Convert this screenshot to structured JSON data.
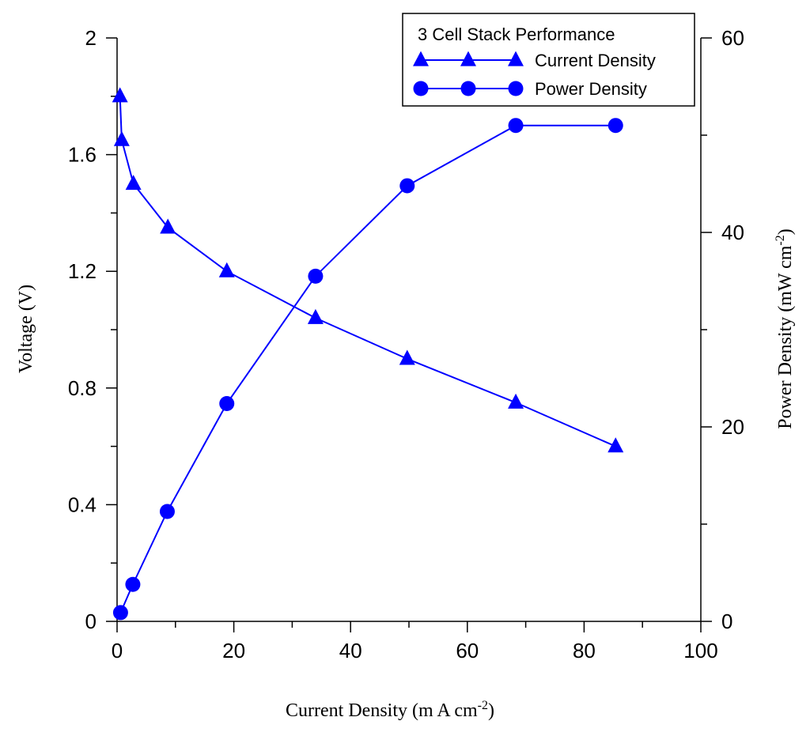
{
  "chart_data": {
    "type": "line",
    "legend_title": "3 Cell Stack Performance",
    "legend_position": "top-right",
    "xlabel": "Current Density (m A cm",
    "xlabel_superscript": "-2",
    "xlabel_suffix": ")",
    "ylabel_left": "Voltage (V)",
    "ylabel_right": "Power Density (mW cm",
    "ylabel_right_superscript": "-2",
    "ylabel_right_suffix": ")",
    "xlim": [
      0,
      100
    ],
    "ylim_left": [
      0,
      2
    ],
    "ylim_right": [
      0,
      60
    ],
    "x_ticks": [
      "0",
      "20",
      "40",
      "60",
      "80",
      "100"
    ],
    "y_left_ticks": [
      "0",
      "0.4",
      "0.8",
      "1.2",
      "1.6",
      "2"
    ],
    "y_right_ticks": [
      "0",
      "20",
      "40",
      "60"
    ],
    "series": [
      {
        "name": "Current Density",
        "axis": "left",
        "marker": "triangle",
        "color": "#0000FF",
        "x": [
          0.5,
          0.8,
          2.8,
          8.7,
          18.8,
          34.0,
          49.7,
          68.3,
          85.4
        ],
        "y": [
          1.8,
          1.65,
          1.5,
          1.35,
          1.2,
          1.04,
          0.9,
          0.75,
          0.6
        ]
      },
      {
        "name": "Power Density",
        "axis": "right",
        "marker": "circle",
        "color": "#0000FF",
        "x": [
          0.6,
          2.7,
          8.6,
          18.8,
          34.0,
          49.7,
          68.3,
          85.4
        ],
        "y": [
          0.9,
          3.8,
          11.3,
          22.4,
          35.5,
          44.8,
          51.0,
          51.0
        ]
      }
    ]
  }
}
